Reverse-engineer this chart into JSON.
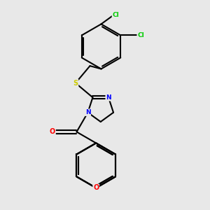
{
  "bg_color": "#e8e8e8",
  "atom_colors": {
    "C": "#000000",
    "N": "#0000ff",
    "O": "#ff0000",
    "S": "#cccc00",
    "Cl": "#00cc00"
  },
  "bond_color": "#000000",
  "line_width": 1.5
}
